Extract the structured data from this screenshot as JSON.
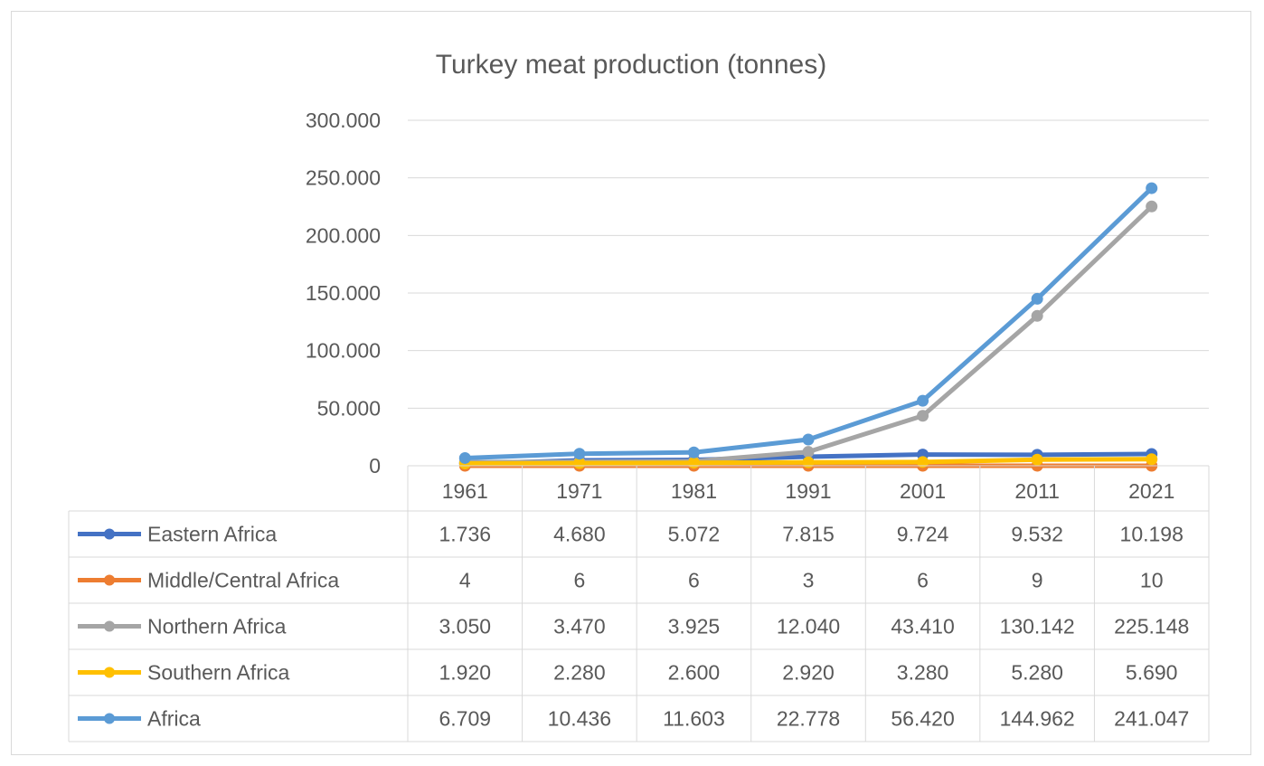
{
  "chart_data": {
    "type": "line",
    "title": "Turkey meat production (tonnes)",
    "xlabel": "",
    "ylabel": "",
    "categories": [
      "1961",
      "1971",
      "1981",
      "1991",
      "2001",
      "2011",
      "2021"
    ],
    "ylim": [
      0,
      300000
    ],
    "y_ticks": [
      0,
      50000,
      100000,
      150000,
      200000,
      250000,
      300000
    ],
    "y_tick_labels": [
      "0",
      "50.000",
      "100.000",
      "150.000",
      "200.000",
      "250.000",
      "300.000"
    ],
    "grid": true,
    "legend_placement": "data-table-left",
    "series": [
      {
        "name": "Eastern Africa",
        "color": "#4472c4",
        "values": [
          1736,
          4680,
          5072,
          7815,
          9724,
          9532,
          10198
        ],
        "labels": [
          "1.736",
          "4.680",
          "5.072",
          "7.815",
          "9.724",
          "9.532",
          "10.198"
        ]
      },
      {
        "name": "Middle/Central Africa",
        "color": "#ed7d31",
        "values": [
          4,
          6,
          6,
          3,
          6,
          9,
          10
        ],
        "labels": [
          "4",
          "6",
          "6",
          "3",
          "6",
          "9",
          "10"
        ]
      },
      {
        "name": "Northern Africa",
        "color": "#a5a5a5",
        "values": [
          3050,
          3470,
          3925,
          12040,
          43410,
          130142,
          225148
        ],
        "labels": [
          "3.050",
          "3.470",
          "3.925",
          "12.040",
          "43.410",
          "130.142",
          "225.148"
        ]
      },
      {
        "name": "Southern Africa",
        "color": "#ffc000",
        "values": [
          1920,
          2280,
          2600,
          2920,
          3280,
          5280,
          5690
        ],
        "labels": [
          "1.920",
          "2.280",
          "2.600",
          "2.920",
          "3.280",
          "5.280",
          "5.690"
        ]
      },
      {
        "name": "Africa",
        "color": "#5b9bd5",
        "values": [
          6709,
          10436,
          11603,
          22778,
          56420,
          144962,
          241047
        ],
        "labels": [
          "6.709",
          "10.436",
          "11.603",
          "22.778",
          "56.420",
          "144.962",
          "241.047"
        ]
      }
    ]
  }
}
